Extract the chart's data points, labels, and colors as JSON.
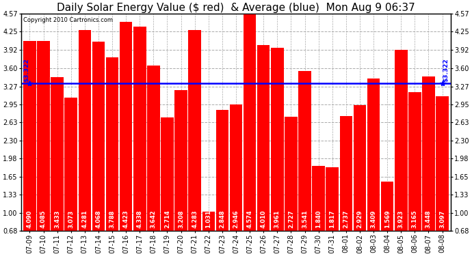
{
  "title": "Daily Solar Energy Value ($ red)  & Average (blue)  Mon Aug 9 06:37",
  "copyright": "Copyright 2010 Cartronics.com",
  "average": 3.322,
  "bar_color": "#FF0000",
  "avg_line_color": "#0000FF",
  "background_color": "#FFFFFF",
  "plot_bg_color": "#FFFFFF",
  "categories": [
    "07-09",
    "07-10",
    "07-11",
    "07-12",
    "07-13",
    "07-14",
    "07-15",
    "07-16",
    "07-17",
    "07-18",
    "07-19",
    "07-20",
    "07-21",
    "07-22",
    "07-23",
    "07-24",
    "07-25",
    "07-26",
    "07-27",
    "07-28",
    "07-29",
    "07-30",
    "07-31",
    "08-01",
    "08-02",
    "08-03",
    "08-04",
    "08-05",
    "08-06",
    "08-07",
    "08-08"
  ],
  "values": [
    4.09,
    4.085,
    3.433,
    3.073,
    4.281,
    4.068,
    3.788,
    4.423,
    4.338,
    3.642,
    2.714,
    3.208,
    4.283,
    1.031,
    2.848,
    2.946,
    4.574,
    4.01,
    3.961,
    2.727,
    3.541,
    1.84,
    1.817,
    2.737,
    2.929,
    3.409,
    1.569,
    3.923,
    3.165,
    3.448,
    3.097
  ],
  "ylim_min": 0.68,
  "ylim_max": 4.57,
  "yticks": [
    0.68,
    1.0,
    1.33,
    1.65,
    1.98,
    2.3,
    2.63,
    2.95,
    3.27,
    3.6,
    3.92,
    4.25,
    4.57
  ],
  "grid_color": "#AAAAAA",
  "grid_style": "--",
  "title_fontsize": 11,
  "tick_fontsize": 7,
  "value_fontsize": 6
}
